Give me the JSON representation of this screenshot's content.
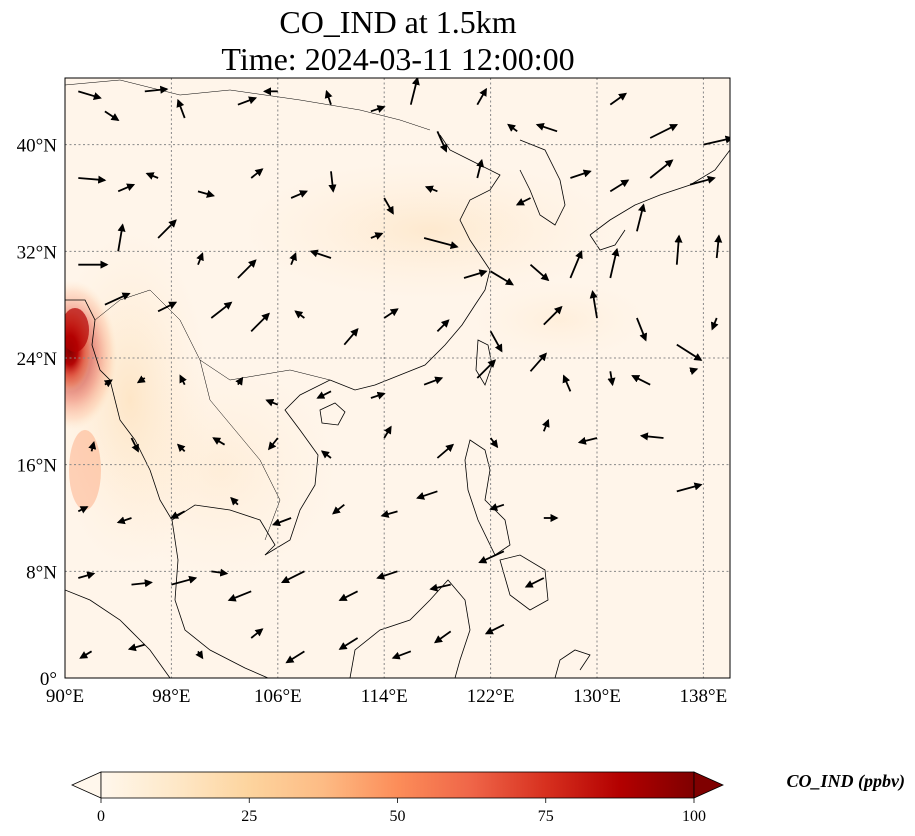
{
  "title": {
    "line1": "CO_IND at 1.5km",
    "line2": "Time: 2024-03-11 12:00:00"
  },
  "map": {
    "lon_range": [
      90,
      140
    ],
    "lat_range": [
      0,
      45
    ],
    "lon_ticks": [
      {
        "value": 90,
        "label": "90°E"
      },
      {
        "value": 98,
        "label": "98°E"
      },
      {
        "value": 106,
        "label": "106°E"
      },
      {
        "value": 114,
        "label": "114°E"
      },
      {
        "value": 122,
        "label": "122°E"
      },
      {
        "value": 130,
        "label": "130°E"
      },
      {
        "value": 138,
        "label": "138°E"
      }
    ],
    "lat_ticks": [
      {
        "value": 0,
        "label": "0°"
      },
      {
        "value": 8,
        "label": "8°N"
      },
      {
        "value": 16,
        "label": "16°N"
      },
      {
        "value": 24,
        "label": "24°N"
      },
      {
        "value": 32,
        "label": "32°N"
      },
      {
        "value": 40,
        "label": "40°N"
      }
    ],
    "gridlines": true,
    "high_concentration_region": "western edge near 22°N–29°N, 90°E–92°E (Myanmar/Bangladesh)",
    "background_level_color": "#fff5ea",
    "plume_colors": [
      "#fde0c0",
      "#e34a33",
      "#b30000",
      "#7f0000"
    ]
  },
  "colorbar": {
    "label": "CO_IND (ppbv)",
    "min": 0,
    "max": 100,
    "extend": "both",
    "ticks": [
      {
        "value": 0,
        "label": "0"
      },
      {
        "value": 25,
        "label": "25"
      },
      {
        "value": 50,
        "label": "50"
      },
      {
        "value": 75,
        "label": "75"
      },
      {
        "value": 100,
        "label": "100"
      }
    ],
    "colors": [
      "#fff5eb",
      "#fee6ce",
      "#fdd0a2",
      "#fdae6b",
      "#fd8d3c",
      "#f16913",
      "#d94801",
      "#a63603",
      "#7f2704"
    ],
    "colors_orrd": [
      "#fff7ec",
      "#fee8c8",
      "#fdd49e",
      "#fdbb84",
      "#fc8d59",
      "#ef6548",
      "#d7301f",
      "#b30000",
      "#7f0000"
    ]
  },
  "wind_field": {
    "description_units": "arrow vectors (u, v) direction per grid point, approximate",
    "vectors": [
      {
        "lon": 91,
        "lat": 44,
        "u": 1,
        "v": -0.3
      },
      {
        "lon": 93,
        "lat": 42.5,
        "u": 0.6,
        "v": -0.4
      },
      {
        "lon": 96,
        "lat": 44,
        "u": 1,
        "v": 0.1
      },
      {
        "lon": 99,
        "lat": 42,
        "u": -0.3,
        "v": 0.8
      },
      {
        "lon": 103,
        "lat": 43,
        "u": 0.8,
        "v": 0.3
      },
      {
        "lon": 106,
        "lat": 44,
        "u": -0.6,
        "v": 0
      },
      {
        "lon": 110,
        "lat": 43,
        "u": -0.2,
        "v": 0.6
      },
      {
        "lon": 113,
        "lat": 42.5,
        "u": 0.6,
        "v": 0.2
      },
      {
        "lon": 116,
        "lat": 43,
        "u": 0.3,
        "v": 1.2
      },
      {
        "lon": 118,
        "lat": 41,
        "u": 0.4,
        "v": -0.9
      },
      {
        "lon": 121,
        "lat": 43,
        "u": 0.4,
        "v": 0.7
      },
      {
        "lon": 124,
        "lat": 41,
        "u": -0.4,
        "v": 0.3
      },
      {
        "lon": 127,
        "lat": 41,
        "u": -0.9,
        "v": 0.3
      },
      {
        "lon": 131,
        "lat": 43,
        "u": 0.7,
        "v": 0.5
      },
      {
        "lon": 134,
        "lat": 40.5,
        "u": 1.2,
        "v": 0.6
      },
      {
        "lon": 138,
        "lat": 40,
        "u": 1.3,
        "v": 0.3
      },
      {
        "lon": 91,
        "lat": 37.5,
        "u": 1.2,
        "v": -0.1
      },
      {
        "lon": 94,
        "lat": 36.5,
        "u": 0.7,
        "v": 0.3
      },
      {
        "lon": 97,
        "lat": 37.5,
        "u": -0.5,
        "v": 0.2
      },
      {
        "lon": 100,
        "lat": 36.5,
        "u": 0.7,
        "v": -0.2
      },
      {
        "lon": 104,
        "lat": 37.5,
        "u": 0.5,
        "v": 0.4
      },
      {
        "lon": 107,
        "lat": 36,
        "u": 0.7,
        "v": 0.3
      },
      {
        "lon": 110,
        "lat": 38,
        "u": 0.1,
        "v": -0.9
      },
      {
        "lon": 114,
        "lat": 36,
        "u": 0.4,
        "v": -0.7
      },
      {
        "lon": 118,
        "lat": 36.5,
        "u": -0.5,
        "v": 0.2
      },
      {
        "lon": 121,
        "lat": 37.5,
        "u": 0.2,
        "v": 0.8
      },
      {
        "lon": 125,
        "lat": 36,
        "u": -0.6,
        "v": -0.3
      },
      {
        "lon": 128,
        "lat": 37.5,
        "u": 0.9,
        "v": 0.3
      },
      {
        "lon": 131,
        "lat": 36.5,
        "u": 0.8,
        "v": 0.5
      },
      {
        "lon": 134,
        "lat": 37.5,
        "u": 1,
        "v": 0.8
      },
      {
        "lon": 137,
        "lat": 37,
        "u": 1.1,
        "v": 0.3
      },
      {
        "lon": 91,
        "lat": 31,
        "u": 1.3,
        "v": 0
      },
      {
        "lon": 94,
        "lat": 32,
        "u": 0.2,
        "v": 1.2
      },
      {
        "lon": 97,
        "lat": 33,
        "u": 0.8,
        "v": 0.8
      },
      {
        "lon": 100,
        "lat": 31,
        "u": 0.2,
        "v": 0.5
      },
      {
        "lon": 103,
        "lat": 30,
        "u": 0.8,
        "v": 0.8
      },
      {
        "lon": 107,
        "lat": 31,
        "u": 0.2,
        "v": 0.5
      },
      {
        "lon": 110,
        "lat": 31.5,
        "u": -0.9,
        "v": 0.3
      },
      {
        "lon": 113,
        "lat": 33,
        "u": 0.5,
        "v": 0.2
      },
      {
        "lon": 117,
        "lat": 33,
        "u": 1.5,
        "v": -0.4
      },
      {
        "lon": 120,
        "lat": 30,
        "u": 1,
        "v": 0.3
      },
      {
        "lon": 122,
        "lat": 30.5,
        "u": 1,
        "v": -0.6
      },
      {
        "lon": 125,
        "lat": 31,
        "u": 0.8,
        "v": -0.7
      },
      {
        "lon": 128,
        "lat": 30,
        "u": 0.5,
        "v": 1.2
      },
      {
        "lon": 131,
        "lat": 30,
        "u": 0.3,
        "v": 1.3
      },
      {
        "lon": 133,
        "lat": 33.5,
        "u": 0.3,
        "v": 1.2
      },
      {
        "lon": 136,
        "lat": 31,
        "u": 0.1,
        "v": 1.3
      },
      {
        "lon": 139,
        "lat": 31.5,
        "u": 0.1,
        "v": 1
      },
      {
        "lon": 93,
        "lat": 28,
        "u": 1.1,
        "v": 0.5
      },
      {
        "lon": 97,
        "lat": 27.5,
        "u": 0.8,
        "v": 0.4
      },
      {
        "lon": 101,
        "lat": 27,
        "u": 0.9,
        "v": 0.7
      },
      {
        "lon": 104,
        "lat": 26,
        "u": 0.8,
        "v": 0.8
      },
      {
        "lon": 108,
        "lat": 27,
        "u": -0.4,
        "v": 0.3
      },
      {
        "lon": 111,
        "lat": 25,
        "u": 0.6,
        "v": 0.7
      },
      {
        "lon": 114,
        "lat": 27,
        "u": 0.6,
        "v": 0.4
      },
      {
        "lon": 118,
        "lat": 26,
        "u": 0.5,
        "v": 0.5
      },
      {
        "lon": 122,
        "lat": 26,
        "u": 0.5,
        "v": -0.9
      },
      {
        "lon": 126,
        "lat": 26.5,
        "u": 0.8,
        "v": 0.8
      },
      {
        "lon": 130,
        "lat": 27,
        "u": -0.2,
        "v": 1.2
      },
      {
        "lon": 133,
        "lat": 27,
        "u": 0.4,
        "v": -1
      },
      {
        "lon": 136,
        "lat": 25,
        "u": 1.1,
        "v": -0.7
      },
      {
        "lon": 139,
        "lat": 27,
        "u": -0.2,
        "v": -0.5
      },
      {
        "lon": 93,
        "lat": 22,
        "u": 0.3,
        "v": 0.2
      },
      {
        "lon": 96,
        "lat": 22.5,
        "u": -0.3,
        "v": -0.2
      },
      {
        "lon": 99,
        "lat": 22,
        "u": -0.2,
        "v": 0.4
      },
      {
        "lon": 103,
        "lat": 22,
        "u": 0.2,
        "v": 0.3
      },
      {
        "lon": 106,
        "lat": 20.5,
        "u": -0.5,
        "v": 0.2
      },
      {
        "lon": 110,
        "lat": 21.5,
        "u": -0.6,
        "v": -0.3
      },
      {
        "lon": 113,
        "lat": 21,
        "u": 0.6,
        "v": 0.2
      },
      {
        "lon": 117,
        "lat": 22,
        "u": 0.8,
        "v": 0.3
      },
      {
        "lon": 121,
        "lat": 22.5,
        "u": 0.8,
        "v": 0.8
      },
      {
        "lon": 125,
        "lat": 23,
        "u": 0.7,
        "v": 0.8
      },
      {
        "lon": 128,
        "lat": 21.5,
        "u": -0.3,
        "v": 0.7
      },
      {
        "lon": 131,
        "lat": 23,
        "u": 0.1,
        "v": -0.6
      },
      {
        "lon": 134,
        "lat": 22,
        "u": -0.8,
        "v": 0.4
      },
      {
        "lon": 137,
        "lat": 23,
        "u": 0.3,
        "v": 0.1
      },
      {
        "lon": 92,
        "lat": 17,
        "u": 0.1,
        "v": 0.4
      },
      {
        "lon": 95,
        "lat": 18,
        "u": 0.3,
        "v": -0.6
      },
      {
        "lon": 99,
        "lat": 17,
        "u": -0.3,
        "v": 0.3
      },
      {
        "lon": 102,
        "lat": 17.5,
        "u": -0.5,
        "v": 0.3
      },
      {
        "lon": 106,
        "lat": 18,
        "u": -0.4,
        "v": -0.5
      },
      {
        "lon": 110,
        "lat": 16.5,
        "u": -0.4,
        "v": 0.3
      },
      {
        "lon": 114,
        "lat": 18,
        "u": 0.3,
        "v": 0.5
      },
      {
        "lon": 118,
        "lat": 16.5,
        "u": 0.7,
        "v": 0.6
      },
      {
        "lon": 122,
        "lat": 18,
        "u": 0.3,
        "v": -0.4
      },
      {
        "lon": 126,
        "lat": 18.5,
        "u": 0.2,
        "v": 0.5
      },
      {
        "lon": 130,
        "lat": 18,
        "u": -0.8,
        "v": -0.2
      },
      {
        "lon": 135,
        "lat": 18,
        "u": -1,
        "v": 0.1
      },
      {
        "lon": 91,
        "lat": 12.5,
        "u": 0.4,
        "v": 0.2
      },
      {
        "lon": 95,
        "lat": 12,
        "u": -0.6,
        "v": -0.2
      },
      {
        "lon": 99,
        "lat": 12.5,
        "u": -0.6,
        "v": -0.3
      },
      {
        "lon": 103,
        "lat": 13,
        "u": -0.3,
        "v": 0.3
      },
      {
        "lon": 107,
        "lat": 12,
        "u": -0.8,
        "v": -0.3
      },
      {
        "lon": 111,
        "lat": 13,
        "u": -0.5,
        "v": -0.4
      },
      {
        "lon": 115,
        "lat": 12.5,
        "u": -0.7,
        "v": -0.2
      },
      {
        "lon": 118,
        "lat": 14,
        "u": -0.9,
        "v": -0.3
      },
      {
        "lon": 123,
        "lat": 13,
        "u": -0.6,
        "v": -0.2
      },
      {
        "lon": 126,
        "lat": 12,
        "u": 0.6,
        "v": 0
      },
      {
        "lon": 136,
        "lat": 14,
        "u": 1.1,
        "v": 0.3
      },
      {
        "lon": 91,
        "lat": 7.5,
        "u": 0.7,
        "v": 0.2
      },
      {
        "lon": 95,
        "lat": 7,
        "u": 0.9,
        "v": 0.1
      },
      {
        "lon": 98,
        "lat": 7,
        "u": 1.1,
        "v": 0.3
      },
      {
        "lon": 101,
        "lat": 8,
        "u": 0.7,
        "v": -0.1
      },
      {
        "lon": 104,
        "lat": 6.5,
        "u": -1,
        "v": -0.4
      },
      {
        "lon": 108,
        "lat": 8,
        "u": -1,
        "v": -0.5
      },
      {
        "lon": 112,
        "lat": 6.5,
        "u": -0.8,
        "v": -0.4
      },
      {
        "lon": 115,
        "lat": 8,
        "u": -0.9,
        "v": -0.3
      },
      {
        "lon": 119,
        "lat": 7,
        "u": -0.9,
        "v": -0.2
      },
      {
        "lon": 123,
        "lat": 9.5,
        "u": -1.1,
        "v": -0.5
      },
      {
        "lon": 126,
        "lat": 7.5,
        "u": -0.8,
        "v": -0.4
      },
      {
        "lon": 92,
        "lat": 2,
        "u": -0.5,
        "v": -0.3
      },
      {
        "lon": 96,
        "lat": 2.5,
        "u": -0.7,
        "v": -0.2
      },
      {
        "lon": 100,
        "lat": 2,
        "u": 0.2,
        "v": -0.3
      },
      {
        "lon": 104,
        "lat": 3,
        "u": 0.5,
        "v": 0.4
      },
      {
        "lon": 108,
        "lat": 2,
        "u": -0.8,
        "v": -0.5
      },
      {
        "lon": 112,
        "lat": 3,
        "u": -0.8,
        "v": -0.5
      },
      {
        "lon": 116,
        "lat": 2,
        "u": -0.8,
        "v": -0.3
      },
      {
        "lon": 119,
        "lat": 3.5,
        "u": -0.7,
        "v": -0.5
      },
      {
        "lon": 123,
        "lat": 4,
        "u": -0.8,
        "v": -0.4
      }
    ]
  }
}
